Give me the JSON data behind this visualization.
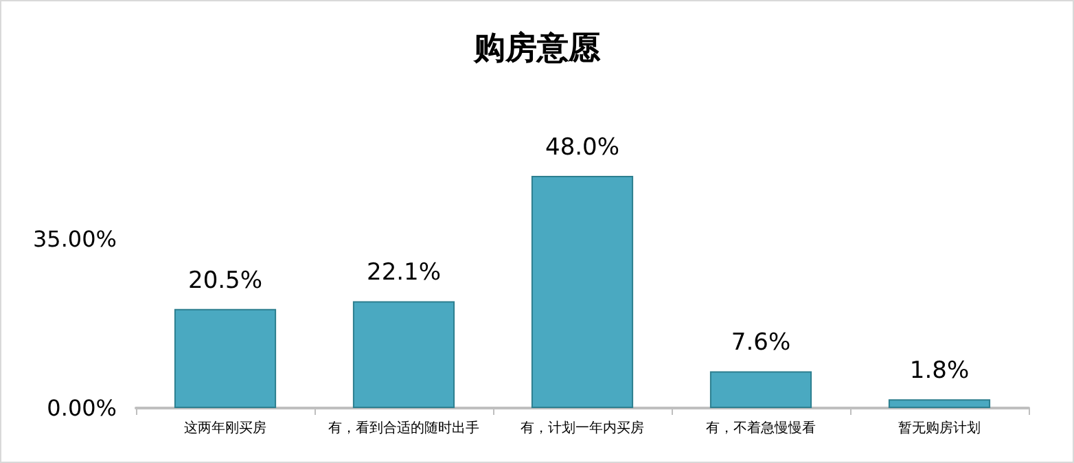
{
  "chart_data": {
    "type": "bar",
    "title": "购房意愿",
    "categories": [
      "这两年刚买房",
      "有，看到合适的随时出手",
      "有，计划一年内买房",
      "有，不着急慢慢看",
      "暂无购房计划"
    ],
    "values": [
      20.5,
      22.1,
      48.0,
      7.6,
      1.8
    ],
    "value_labels": [
      "20.5%",
      "22.1%",
      "48.0%",
      "7.6%",
      "1.8%"
    ],
    "color": "#4aa9c1",
    "ylim": [
      0,
      48
    ],
    "yticks": [
      {
        "value": 0,
        "label": "0.00%"
      },
      {
        "value": 35,
        "label": "35.00%"
      }
    ],
    "grid": false
  }
}
